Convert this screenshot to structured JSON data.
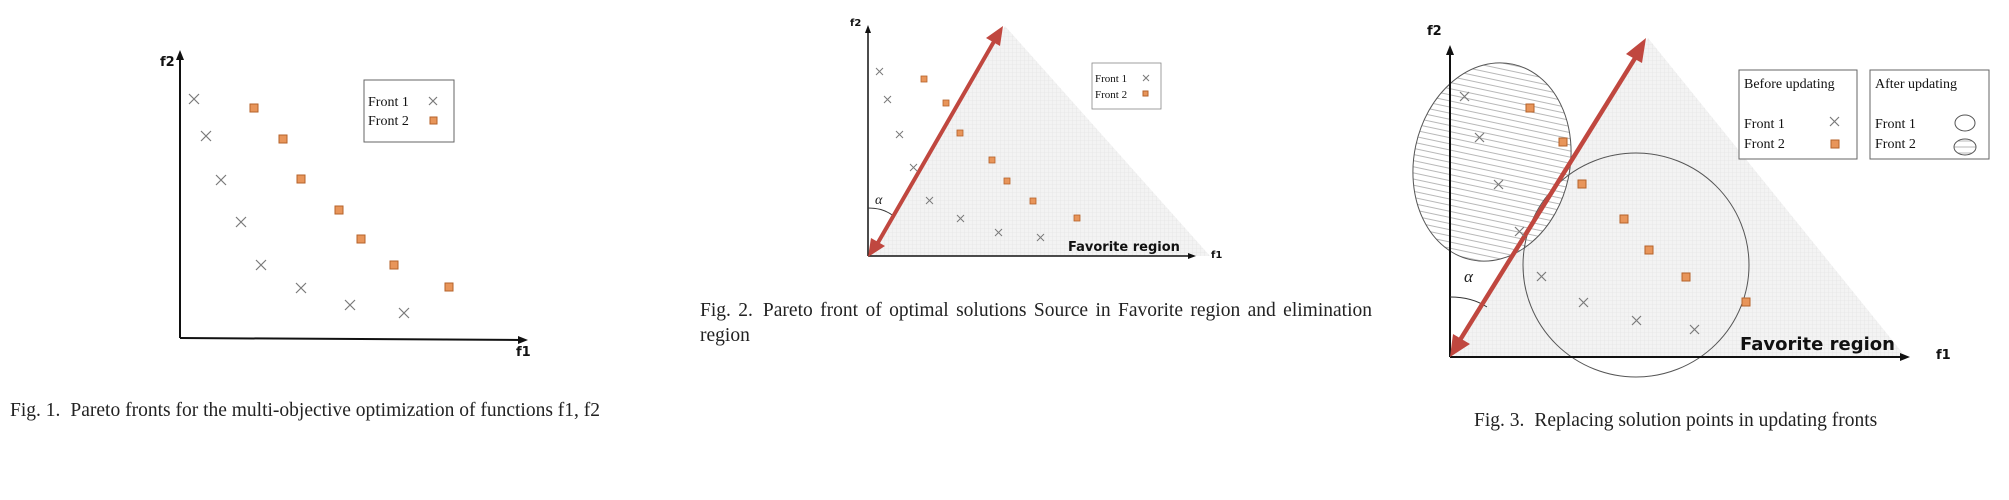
{
  "figures": [
    {
      "caption_num": "Fig. 1.",
      "caption_text": "Pareto fronts for the multi-objective optimization of functions f1, f2",
      "xlabel": "f1",
      "ylabel": "f2",
      "legend": [
        "Front 1",
        "Front 2"
      ]
    },
    {
      "caption_num": "Fig. 2.",
      "caption_text": "Pareto front of optimal solutions Source in Favorite region and elimination region",
      "xlabel": "f1",
      "ylabel": "f2",
      "angle_label": "α",
      "region_label": "Favorite region",
      "legend": [
        "Front 1",
        "Front 2"
      ]
    },
    {
      "caption_num": "Fig. 3.",
      "caption_text": "Replacing solution points in updating fronts",
      "xlabel": "f1",
      "ylabel": "f2",
      "angle_label": "α",
      "region_label": "Favorite region",
      "legend_before_title": "Before updating",
      "legend_after_title": "After updating",
      "legend": [
        "Front 1",
        "Front 2"
      ]
    }
  ],
  "colors": {
    "arrow": "#c0473f",
    "front2_fill": "#e8955a",
    "front2_stroke": "#b5622a",
    "cross": "#7a7a7a",
    "region_fill": "#ededed"
  }
}
